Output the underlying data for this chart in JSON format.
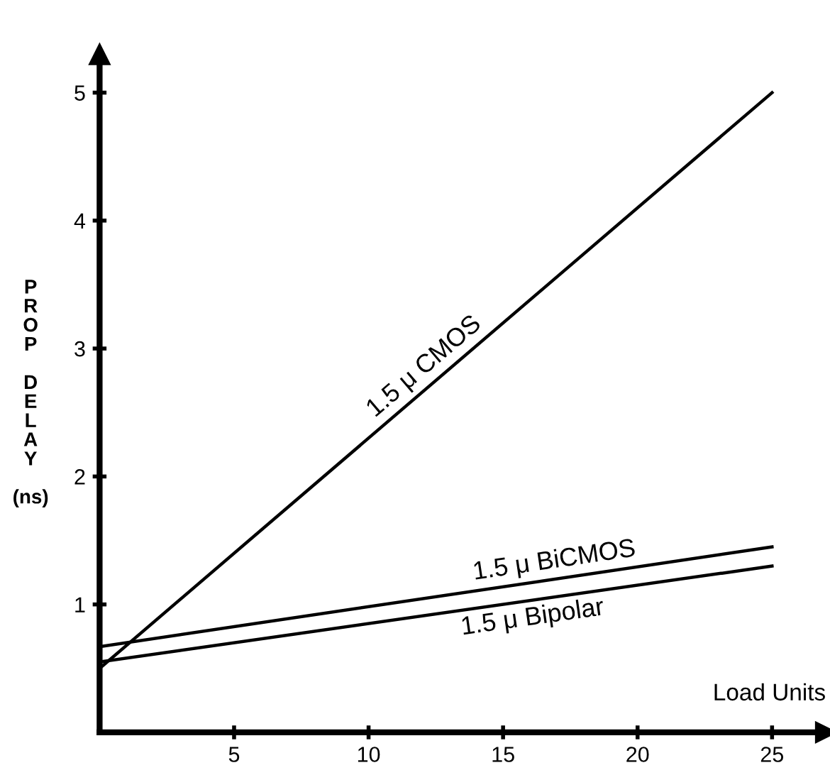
{
  "chart_data": {
    "type": "line",
    "xlabel": "Load Units",
    "ylabel": "PROP DELAY (ns)",
    "x": [
      0,
      25
    ],
    "series": [
      {
        "color": "#000000",
        "values": [
          0.5,
          5.0
        ]
      },
      {
        "color": "#000000",
        "values": [
          0.67,
          1.45
        ]
      },
      {
        "color": "#000000",
        "values": [
          0.55,
          1.3
        ]
      }
    ],
    "annotations": [
      "1.5 μ CMOS",
      "1.5 μ BiCMOS",
      "1.5 μ Bipolar"
    ],
    "xlim": [
      0,
      27
    ],
    "ylim": [
      0,
      5.3
    ],
    "xticks": [
      5,
      10,
      15,
      20,
      25
    ],
    "yticks": [
      1,
      2,
      3,
      4,
      5
    ],
    "grid": false,
    "legend": false,
    "marker": "none",
    "line_style": "solid"
  }
}
